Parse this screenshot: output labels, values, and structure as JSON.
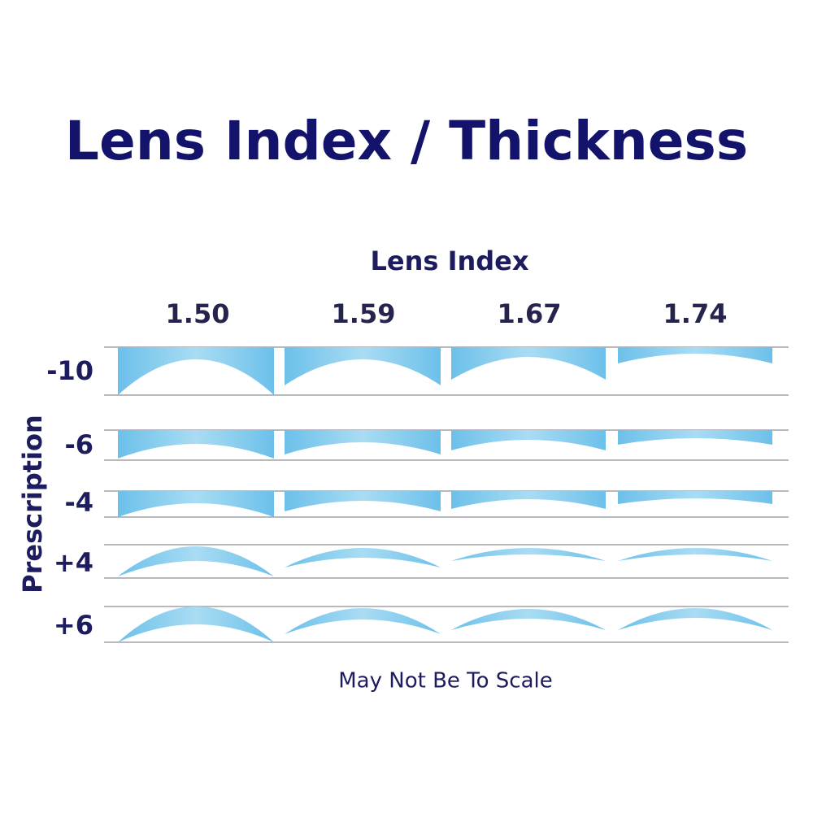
{
  "title": "Lens Index / Thickness",
  "column_header": "Lens Index",
  "columns": [
    "1.50",
    "1.59",
    "1.67",
    "1.74"
  ],
  "row_header": "Prescription",
  "rows": [
    "-10",
    "-6",
    "-4",
    "+4",
    "+6"
  ],
  "footnote": "May Not Be To Scale"
}
